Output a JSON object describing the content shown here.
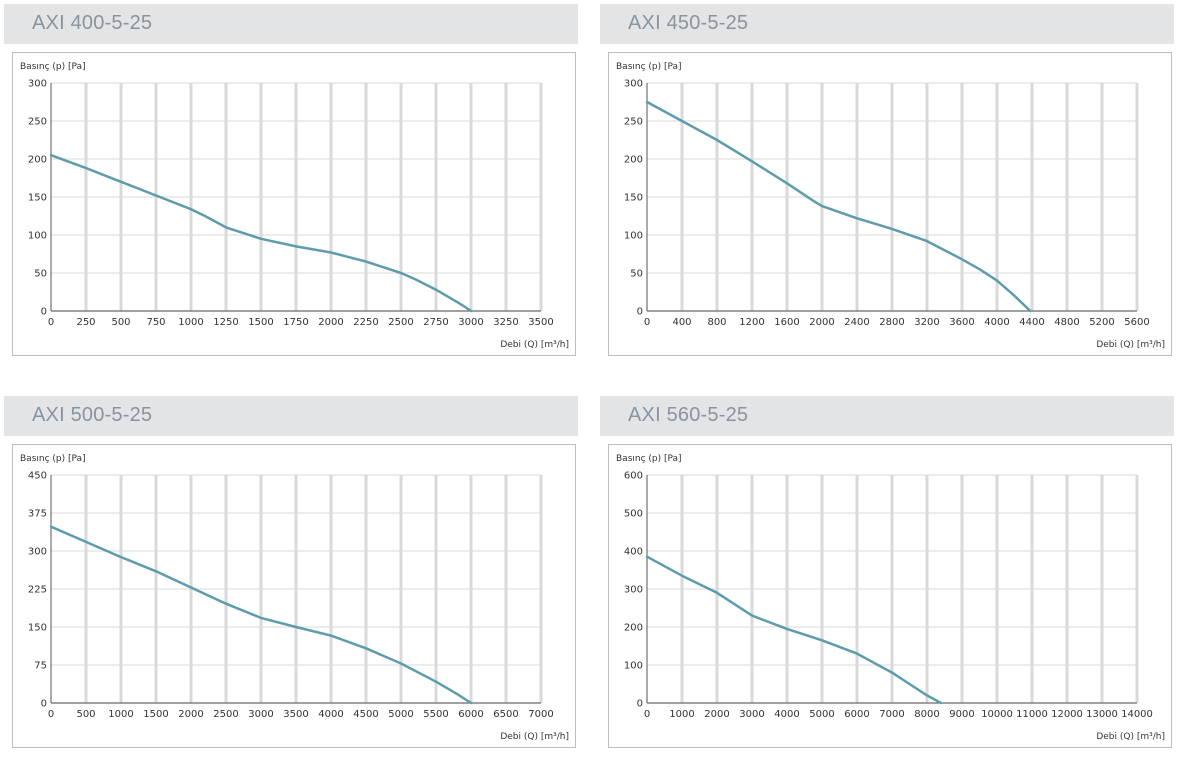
{
  "chart_data": [
    {
      "type": "line",
      "title": "AXI 400-5-25",
      "xlabel": "Debi (Q) [m³/h]",
      "ylabel": "Basınç (p) [Pa]",
      "xlim": [
        0,
        3500
      ],
      "ylim": [
        0,
        300
      ],
      "xticks": [
        0,
        250,
        500,
        750,
        1000,
        1250,
        1500,
        1750,
        2000,
        2250,
        2500,
        2750,
        3000,
        3250,
        3500
      ],
      "yticks": [
        0,
        50,
        100,
        150,
        200,
        250,
        300
      ],
      "grid": "vertical",
      "series": [
        {
          "x": [
            0,
            250,
            500,
            750,
            1000,
            1100,
            1250,
            1500,
            1750,
            2000,
            2250,
            2500,
            2600,
            2750,
            2900,
            2960,
            3000
          ],
          "y": [
            205,
            188,
            170,
            152,
            134,
            125,
            110,
            95,
            85,
            77,
            65,
            50,
            42,
            28,
            12,
            5,
            0
          ]
        }
      ]
    },
    {
      "type": "line",
      "title": "AXI 450-5-25",
      "xlabel": "Debi (Q) [m³/h]",
      "ylabel": "Basınç (p) [Pa]",
      "xlim": [
        0,
        5600
      ],
      "ylim": [
        0,
        300
      ],
      "xticks": [
        0,
        400,
        800,
        1200,
        1600,
        2000,
        2400,
        2800,
        3200,
        3600,
        4000,
        4400,
        4800,
        5200,
        5600
      ],
      "yticks": [
        0,
        50,
        100,
        150,
        200,
        250,
        300
      ],
      "grid": "vertical",
      "series": [
        {
          "x": [
            0,
            400,
            800,
            1200,
            1600,
            1900,
            2000,
            2400,
            2800,
            3200,
            3600,
            3800,
            4000,
            4200,
            4380
          ],
          "y": [
            275,
            250,
            225,
            197,
            168,
            145,
            138,
            122,
            108,
            92,
            68,
            55,
            40,
            20,
            0
          ]
        }
      ]
    },
    {
      "type": "line",
      "title": "AXI 500-5-25",
      "xlabel": "Debi (Q) [m³/h]",
      "ylabel": "Basınç (p) [Pa]",
      "xlim": [
        0,
        7000
      ],
      "ylim": [
        0,
        450
      ],
      "xticks": [
        0,
        500,
        1000,
        1500,
        2000,
        2500,
        3000,
        3500,
        4000,
        4500,
        5000,
        5500,
        6000,
        6500,
        7000
      ],
      "yticks": [
        0,
        75,
        150,
        225,
        300,
        375,
        450
      ],
      "grid": "vertical",
      "series": [
        {
          "x": [
            0,
            500,
            1000,
            1500,
            2000,
            2500,
            3000,
            3500,
            4000,
            4500,
            5000,
            5500,
            5800,
            6000
          ],
          "y": [
            348,
            318,
            288,
            260,
            228,
            196,
            168,
            150,
            133,
            108,
            78,
            42,
            18,
            0
          ]
        }
      ]
    },
    {
      "type": "line",
      "title": "AXI 560-5-25",
      "xlabel": "Debi (Q) [m³/h]",
      "ylabel": "Basınç (p) [Pa]",
      "xlim": [
        0,
        14000
      ],
      "ylim": [
        0,
        600
      ],
      "xticks": [
        0,
        1000,
        2000,
        3000,
        4000,
        5000,
        6000,
        7000,
        8000,
        9000,
        10000,
        11000,
        12000,
        13000,
        14000
      ],
      "yticks": [
        0,
        100,
        200,
        300,
        400,
        500,
        600
      ],
      "grid": "vertical",
      "series": [
        {
          "x": [
            0,
            1000,
            2000,
            3000,
            4000,
            5000,
            6000,
            7000,
            7500,
            8000,
            8400
          ],
          "y": [
            385,
            335,
            290,
            230,
            195,
            165,
            130,
            80,
            50,
            20,
            0
          ]
        }
      ]
    }
  ]
}
